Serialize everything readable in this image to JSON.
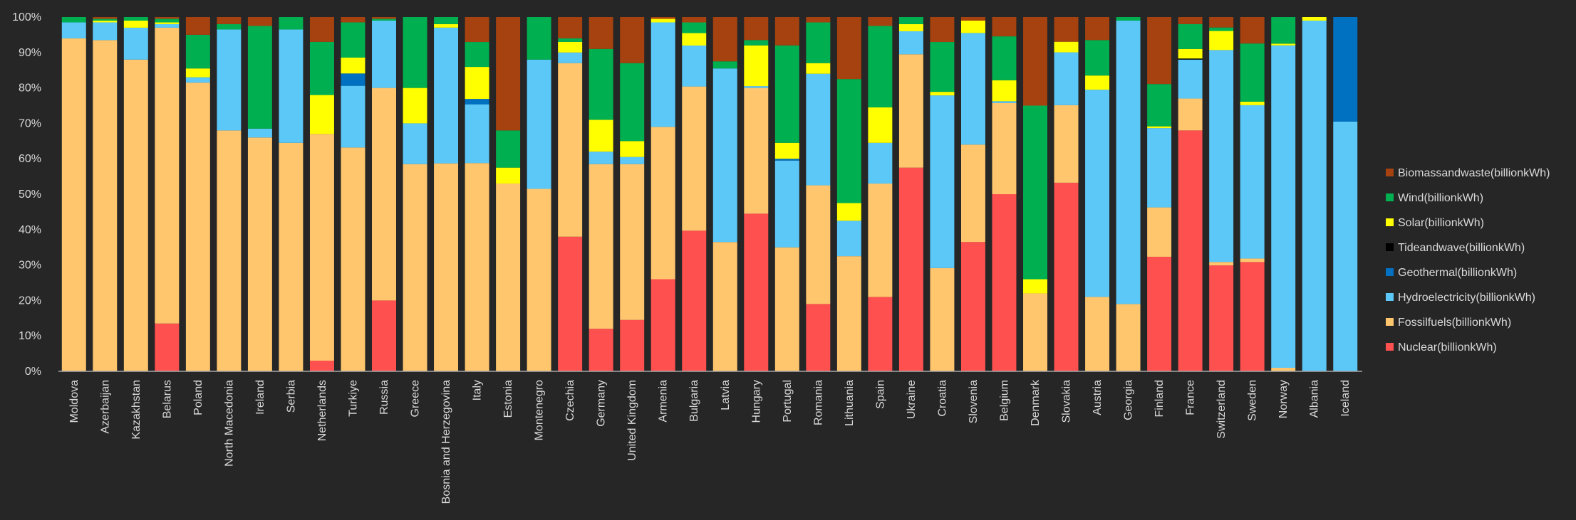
{
  "chart_data": {
    "type": "bar",
    "stacking": "percent",
    "title": "",
    "xlabel": "",
    "ylabel": "",
    "ylim": [
      0,
      100
    ],
    "yticks": [
      "0%",
      "10%",
      "20%",
      "30%",
      "40%",
      "50%",
      "60%",
      "70%",
      "80%",
      "90%",
      "100%"
    ],
    "grid": false,
    "legend_position": "right",
    "categories": [
      "Moldova",
      "Azerbaijan",
      "Kazakhstan",
      "Belarus",
      "Poland",
      "North Macedonia",
      "Ireland",
      "Serbia",
      "Netherlands",
      "Turkiye",
      "Russia",
      "Greece",
      "Bosnia and Herzegovina",
      "Italy",
      "Estonia",
      "Montenegro",
      "Czechia",
      "Germany",
      "United Kingdom",
      "Armenia",
      "Bulgaria",
      "Latvia",
      "Hungary",
      "Portugal",
      "Romania",
      "Lithuania",
      "Spain",
      "Ukraine",
      "Croatia",
      "Slovenia",
      "Belgium",
      "Denmark",
      "Slovakia",
      "Austria",
      "Georgia",
      "Finland",
      "France",
      "Switzerland",
      "Sweden",
      "Norway",
      "Albania",
      "Iceland"
    ],
    "series": [
      {
        "name": "Nuclear(billionkWh)",
        "color": "#ff5050",
        "values": [
          0,
          0,
          0,
          13.5,
          0,
          0,
          0,
          0,
          3,
          0,
          20,
          0,
          0,
          0,
          0,
          0,
          38,
          12,
          14.5,
          26,
          39.5,
          0,
          44.5,
          0,
          19,
          0,
          21,
          57.5,
          0,
          36.5,
          50.5,
          0,
          53.5,
          0,
          0,
          32.5,
          68,
          30.5,
          31,
          0,
          0,
          0
        ]
      },
      {
        "name": "Fossilfuels(billionkWh)",
        "color": "#ffc66d",
        "values": [
          94,
          93.5,
          88,
          83.5,
          81.5,
          68,
          66,
          64.5,
          64,
          63.5,
          60,
          58.5,
          59,
          58.5,
          53,
          51.5,
          49,
          46.5,
          44,
          43,
          40.5,
          36.5,
          35.5,
          35,
          33.5,
          32.5,
          32,
          32,
          29,
          27.5,
          26,
          22,
          22,
          21,
          19,
          14,
          9,
          1,
          1,
          1,
          0,
          0
        ]
      },
      {
        "name": "Hydroelectricity(billionkWh)",
        "color": "#5bc8f8",
        "values": [
          4.5,
          5,
          9,
          1,
          1.5,
          28.5,
          2.5,
          32,
          0,
          17.5,
          19,
          11.5,
          38.5,
          16.5,
          0,
          36.5,
          3,
          3.5,
          2,
          29.5,
          11.5,
          49,
          0.5,
          24.5,
          31.5,
          10,
          11.5,
          6.5,
          48.5,
          31.5,
          0.5,
          0,
          15,
          58.5,
          80,
          22.5,
          11,
          61,
          43.5,
          91,
          99,
          70.5
        ]
      },
      {
        "name": "Geothermal(billionkWh)",
        "color": "#0070c0",
        "values": [
          0,
          0,
          0,
          0,
          0,
          0,
          0,
          0,
          0,
          3.5,
          0,
          0,
          0,
          1.5,
          0,
          0,
          0,
          0,
          0,
          0,
          0,
          0,
          0,
          0.5,
          0,
          0,
          0,
          0,
          0,
          0,
          0,
          0,
          0,
          0,
          0,
          0,
          0,
          0,
          0,
          0,
          0,
          29.5
        ]
      },
      {
        "name": "Tideandwave(billionkWh)",
        "color": "#000000",
        "values": [
          0,
          0,
          0,
          0,
          0,
          0,
          0,
          0,
          0,
          0,
          0,
          0,
          0,
          0,
          0,
          0,
          0,
          0,
          0,
          0,
          0,
          0,
          0,
          0,
          0,
          0,
          0,
          0,
          0,
          0,
          0,
          0,
          0,
          0,
          0,
          0,
          0.3,
          0,
          0,
          0,
          0,
          0
        ]
      },
      {
        "name": "Solar(billionkWh)",
        "color": "#ffff00",
        "values": [
          0,
          0.5,
          2,
          0.5,
          2.5,
          0,
          0,
          0,
          11,
          4.5,
          0,
          10,
          1,
          9,
          4.5,
          0,
          3,
          9,
          4.5,
          1,
          3.5,
          0,
          11.5,
          4.5,
          3,
          5,
          10,
          2,
          1,
          3.5,
          6,
          4,
          3,
          4,
          0,
          0.5,
          2.7,
          5.5,
          1,
          0.5,
          1,
          0
        ]
      },
      {
        "name": "Wind(billionkWh)",
        "color": "#00b050",
        "values": [
          1.5,
          0.5,
          1,
          1,
          9.5,
          1.5,
          29,
          3.5,
          15,
          10,
          0.5,
          20,
          2,
          7,
          10.5,
          12,
          1,
          20,
          22,
          0,
          3,
          2,
          1.5,
          27.5,
          11.5,
          35,
          23,
          2,
          14,
          0,
          12.5,
          49,
          0,
          10,
          1,
          12,
          7,
          1,
          16.5,
          7.5,
          0,
          0
        ]
      },
      {
        "name": "Biomassandwaste(billionkWh)",
        "color": "#a5420f",
        "values": [
          0,
          0.5,
          0,
          0.5,
          5,
          2,
          2.5,
          0,
          7,
          1.5,
          0.5,
          0,
          0,
          7,
          32,
          0,
          6,
          9,
          13,
          0.5,
          1.5,
          12.5,
          6.5,
          8,
          1.5,
          17.5,
          2.5,
          0,
          7,
          1,
          5.5,
          25,
          7,
          6.5,
          0,
          19,
          2,
          3,
          7.5,
          0,
          0,
          0
        ]
      }
    ]
  }
}
